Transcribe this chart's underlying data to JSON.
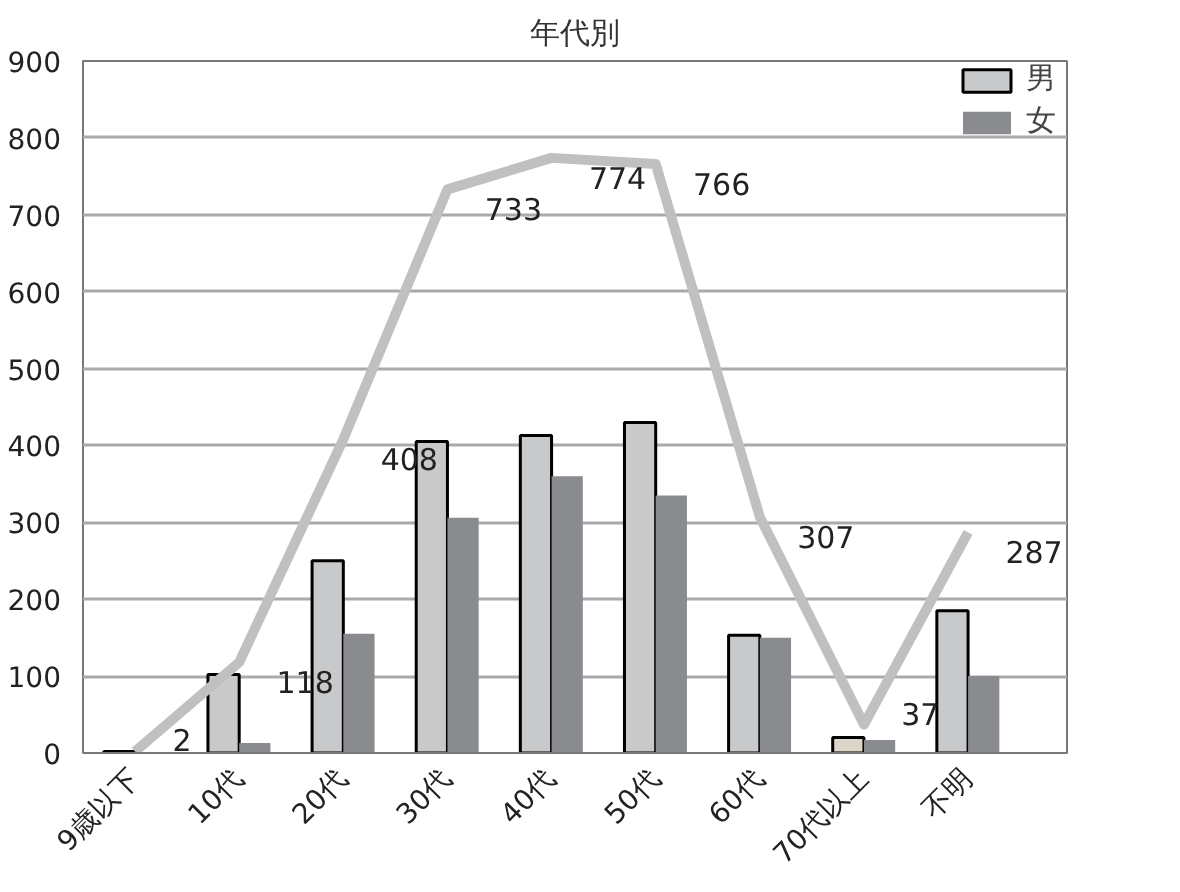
{
  "chart_data": {
    "type": "bar",
    "title": "年代別",
    "categories": [
      "9歳以下",
      "10代",
      "20代",
      "30代",
      "40代",
      "50代",
      "60代",
      "70代以上",
      "不明"
    ],
    "series": [
      {
        "name": "男",
        "color": "#c8c9cb",
        "colors": [
          null,
          null,
          null,
          null,
          null,
          null,
          null,
          "#ddd5c8",
          null
        ],
        "values": [
          2,
          102,
          250,
          405,
          413,
          430,
          153,
          20,
          185
        ]
      },
      {
        "name": "女",
        "color": "#8a8b8f",
        "values": [
          0,
          13,
          155,
          306,
          360,
          335,
          150,
          17,
          100
        ]
      },
      {
        "type": "line",
        "color": "#c0c0c2",
        "values": [
          2,
          118,
          408,
          733,
          774,
          766,
          307,
          37,
          287
        ],
        "value_labels": [
          "2",
          "118",
          "408",
          "733",
          "774",
          "766",
          "307",
          "37",
          "287"
        ]
      }
    ],
    "ylim": [
      0,
      900
    ],
    "yticks": [
      0,
      100,
      200,
      300,
      400,
      500,
      600,
      700,
      800,
      900
    ],
    "grid": "y",
    "legend": "top right",
    "marker": "none"
  }
}
